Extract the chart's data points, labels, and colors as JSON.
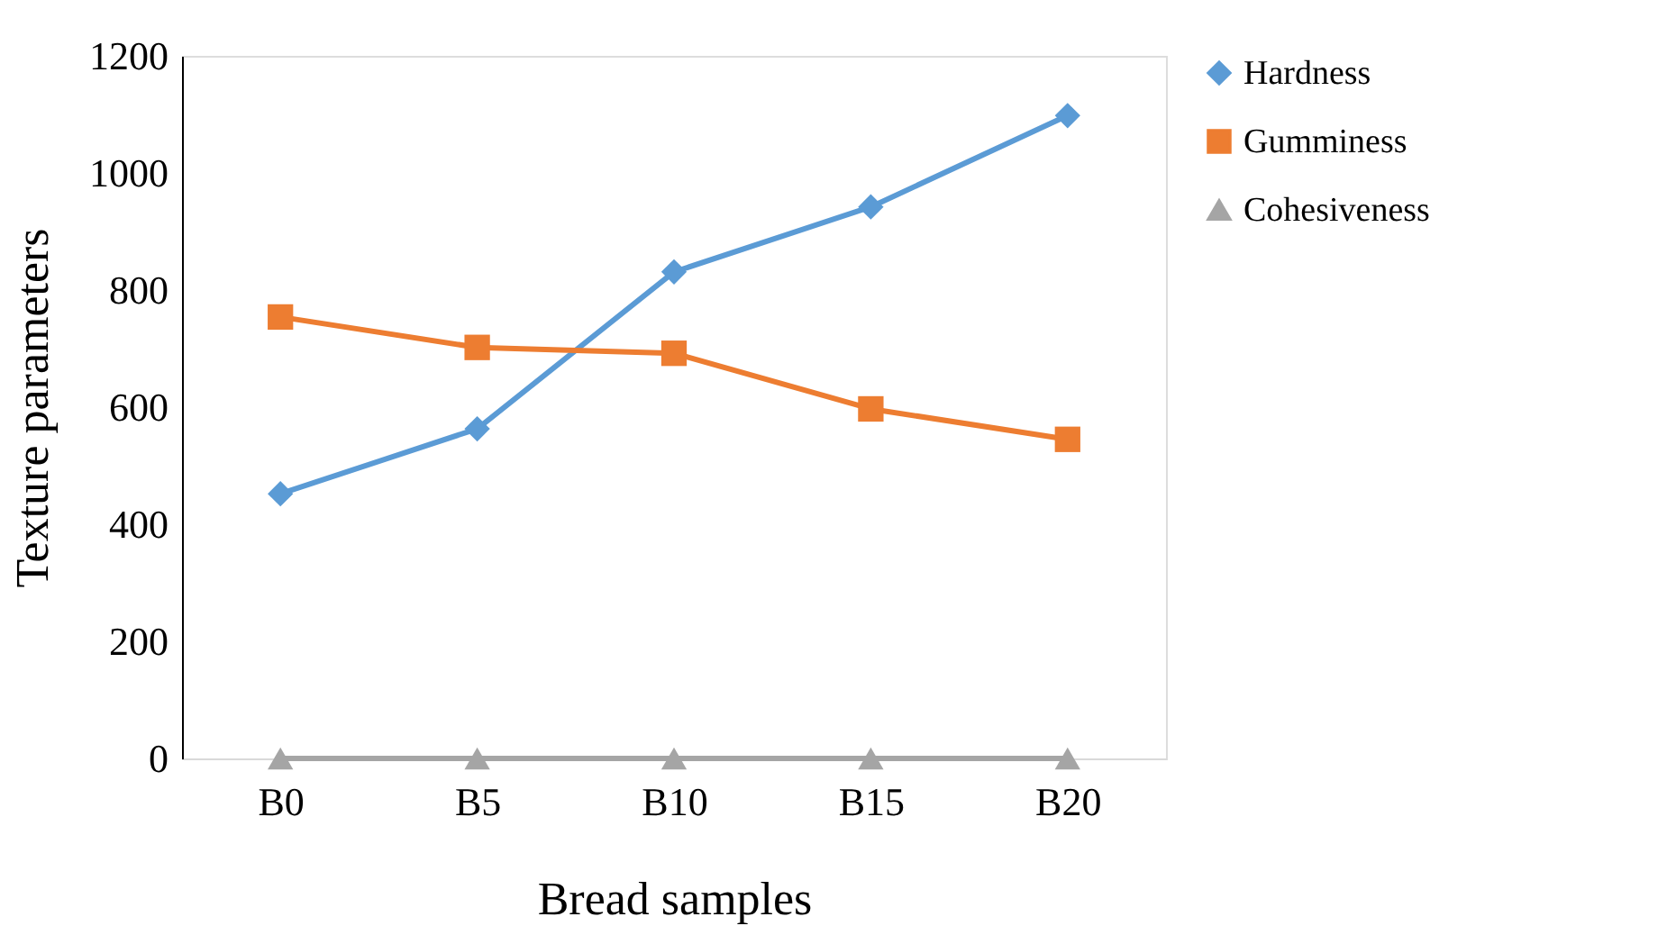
{
  "chart_data": {
    "type": "line",
    "xlabel": "Bread samples",
    "ylabel": "Texture parameters",
    "categories": [
      "B0",
      "B5",
      "B10",
      "B15",
      "B20"
    ],
    "series": [
      {
        "name": "Hardness",
        "color": "#5b9bd5",
        "marker": "diamond",
        "values": [
          452,
          563,
          831,
          942,
          1098
        ]
      },
      {
        "name": "Gumminess",
        "color": "#ed7d31",
        "marker": "square",
        "values": [
          754,
          702,
          692,
          597,
          545
        ]
      },
      {
        "name": "Cohesiveness",
        "color": "#a5a5a5",
        "marker": "triangle",
        "values": [
          0,
          0,
          0,
          0,
          0
        ]
      }
    ],
    "ylim": [
      0,
      1200
    ],
    "yticks": [
      0,
      200,
      400,
      600,
      800,
      {
        "value": 1000,
        "label": "1000"
      },
      {
        "value": 1200,
        "label": "1200"
      }
    ],
    "grid": false,
    "legend": "right",
    "line_style": "solid"
  }
}
